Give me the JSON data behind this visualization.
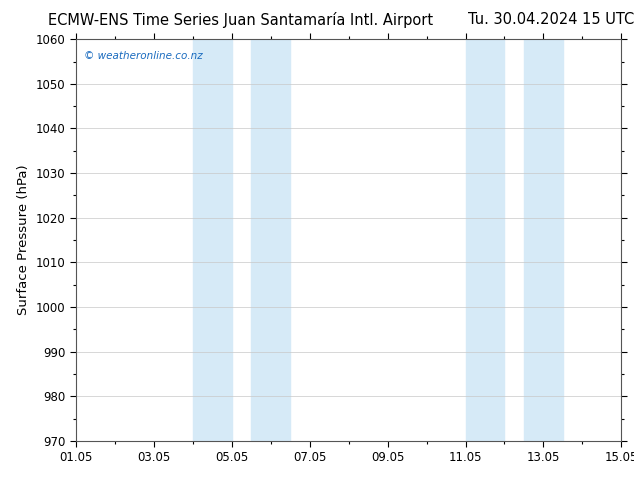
{
  "title_left": "ECMW-ENS Time Series Juan Santamaría Intl. Airport",
  "title_right": "Tu. 30.04.2024 15 UTC",
  "ylabel": "Surface Pressure (hPa)",
  "ylim": [
    970,
    1060
  ],
  "yticks": [
    970,
    980,
    990,
    1000,
    1010,
    1020,
    1030,
    1040,
    1050,
    1060
  ],
  "xtick_labels": [
    "01.05",
    "03.05",
    "05.05",
    "07.05",
    "09.05",
    "11.05",
    "13.05",
    "15.05"
  ],
  "xtick_positions": [
    0,
    2,
    4,
    6,
    8,
    10,
    12,
    14
  ],
  "shaded_bands": [
    {
      "xstart": 3.0,
      "xend": 4.0,
      "color": "#d6eaf7",
      "alpha": 1.0
    },
    {
      "xstart": 4.5,
      "xend": 5.5,
      "color": "#d6eaf7",
      "alpha": 1.0
    },
    {
      "xstart": 10.0,
      "xend": 11.0,
      "color": "#d6eaf7",
      "alpha": 1.0
    },
    {
      "xstart": 11.5,
      "xend": 12.5,
      "color": "#d6eaf7",
      "alpha": 1.0
    }
  ],
  "watermark": "© weatheronline.co.nz",
  "watermark_color": "#1a6bbf",
  "bg_color": "#ffffff",
  "plot_bg_color": "#ffffff",
  "grid_color": "#c8c8c8",
  "title_fontsize": 10.5,
  "tick_fontsize": 8.5,
  "ylabel_fontsize": 9.5
}
